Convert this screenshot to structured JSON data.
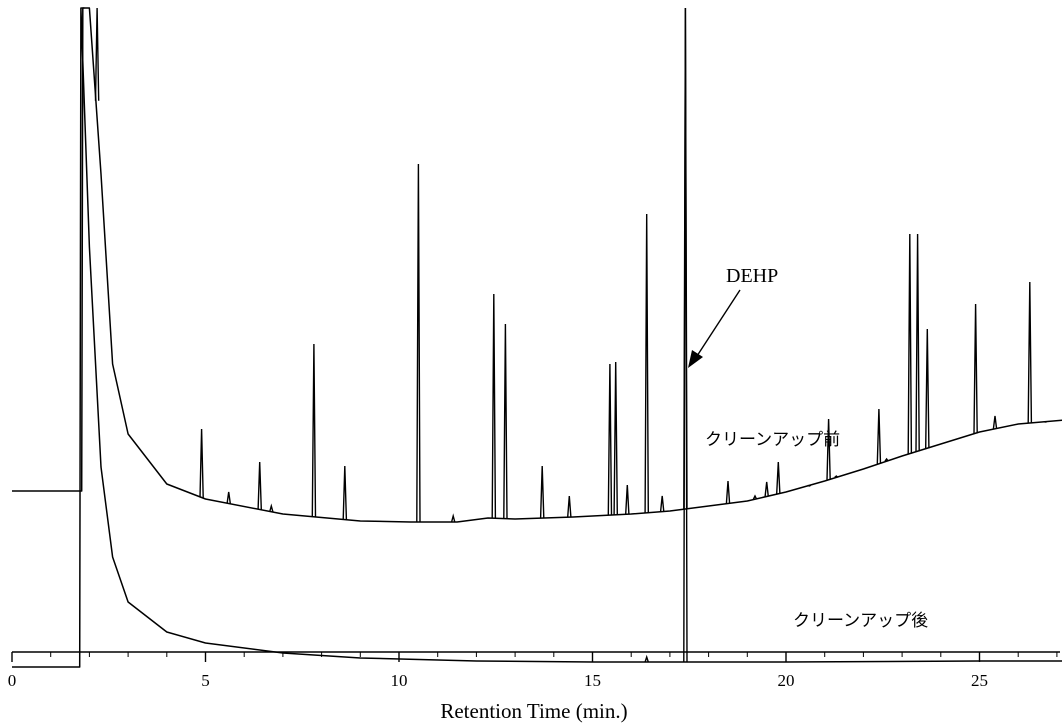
{
  "chart_data": {
    "type": "line",
    "xlabel": "Retention Time (min.)",
    "ylabel": "",
    "xlim": [
      0,
      27.5
    ],
    "x_ticks": [
      0,
      5,
      10,
      15,
      20,
      25
    ],
    "grid": false,
    "legend": "none",
    "series": [
      {
        "name": "クリーンアップ前",
        "baseline": [
          [
            0,
            103
          ],
          [
            1.8,
            103
          ],
          [
            1.83,
            670
          ],
          [
            2.0,
            640
          ],
          [
            2.3,
            420
          ],
          [
            2.6,
            230
          ],
          [
            3.0,
            160
          ],
          [
            4.0,
            110
          ],
          [
            5.0,
            95
          ],
          [
            7.0,
            80
          ],
          [
            9.0,
            73
          ],
          [
            10.3,
            72
          ],
          [
            11.5,
            72
          ],
          [
            12.3,
            76
          ],
          [
            13.0,
            75
          ],
          [
            14.5,
            77
          ],
          [
            16.0,
            80
          ],
          [
            17.0,
            83
          ],
          [
            18.0,
            88
          ],
          [
            19.0,
            93
          ],
          [
            20.0,
            102
          ],
          [
            21.0,
            113
          ],
          [
            22.0,
            125
          ],
          [
            23.0,
            138
          ],
          [
            24.0,
            150
          ],
          [
            25.0,
            162
          ],
          [
            26.0,
            170
          ],
          [
            27.5,
            175
          ]
        ],
        "peaks": [
          [
            1.83,
            670
          ],
          [
            2.2,
            640
          ],
          [
            4.9,
            165
          ],
          [
            5.6,
            102
          ],
          [
            6.4,
            132
          ],
          [
            6.7,
            88
          ],
          [
            7.8,
            250
          ],
          [
            8.6,
            128
          ],
          [
            10.5,
            430
          ],
          [
            11.4,
            78
          ],
          [
            12.45,
            300
          ],
          [
            12.75,
            270
          ],
          [
            13.7,
            128
          ],
          [
            14.4,
            98
          ],
          [
            15.45,
            230
          ],
          [
            15.6,
            232
          ],
          [
            15.9,
            109
          ],
          [
            16.4,
            380
          ],
          [
            16.8,
            98
          ],
          [
            17.4,
            670
          ],
          [
            18.5,
            113
          ],
          [
            19.2,
            98
          ],
          [
            19.5,
            112
          ],
          [
            19.8,
            132
          ],
          [
            20.6,
            108
          ],
          [
            21.1,
            175
          ],
          [
            21.3,
            118
          ],
          [
            22.4,
            185
          ],
          [
            22.6,
            135
          ],
          [
            23.2,
            360
          ],
          [
            23.4,
            360
          ],
          [
            23.65,
            265
          ],
          [
            24.9,
            290
          ],
          [
            25.4,
            178
          ],
          [
            26.3,
            312
          ],
          [
            26.7,
            172
          ]
        ]
      },
      {
        "name": "クリーンアップ後",
        "baseline": [
          [
            0,
            0
          ],
          [
            1.75,
            0
          ],
          [
            1.78,
            670
          ],
          [
            2.0,
            420
          ],
          [
            2.3,
            200
          ],
          [
            2.6,
            110
          ],
          [
            3.0,
            65
          ],
          [
            4.0,
            35
          ],
          [
            5.0,
            24
          ],
          [
            7.0,
            14
          ],
          [
            9.0,
            9
          ],
          [
            12.0,
            6
          ],
          [
            15.0,
            5
          ],
          [
            17.3,
            5
          ],
          [
            20.0,
            5
          ],
          [
            25.0,
            6
          ],
          [
            27.5,
            6
          ]
        ],
        "peaks": [
          [
            17.4,
            670
          ],
          [
            16.4,
            10
          ]
        ]
      }
    ],
    "annotations": [
      {
        "text": "DEHP",
        "points_to_x": 17.4
      },
      {
        "text": "クリーンアップ前",
        "refers_to": "series 1"
      },
      {
        "text": "クリーンアップ後",
        "refers_to": "series 2"
      }
    ]
  }
}
